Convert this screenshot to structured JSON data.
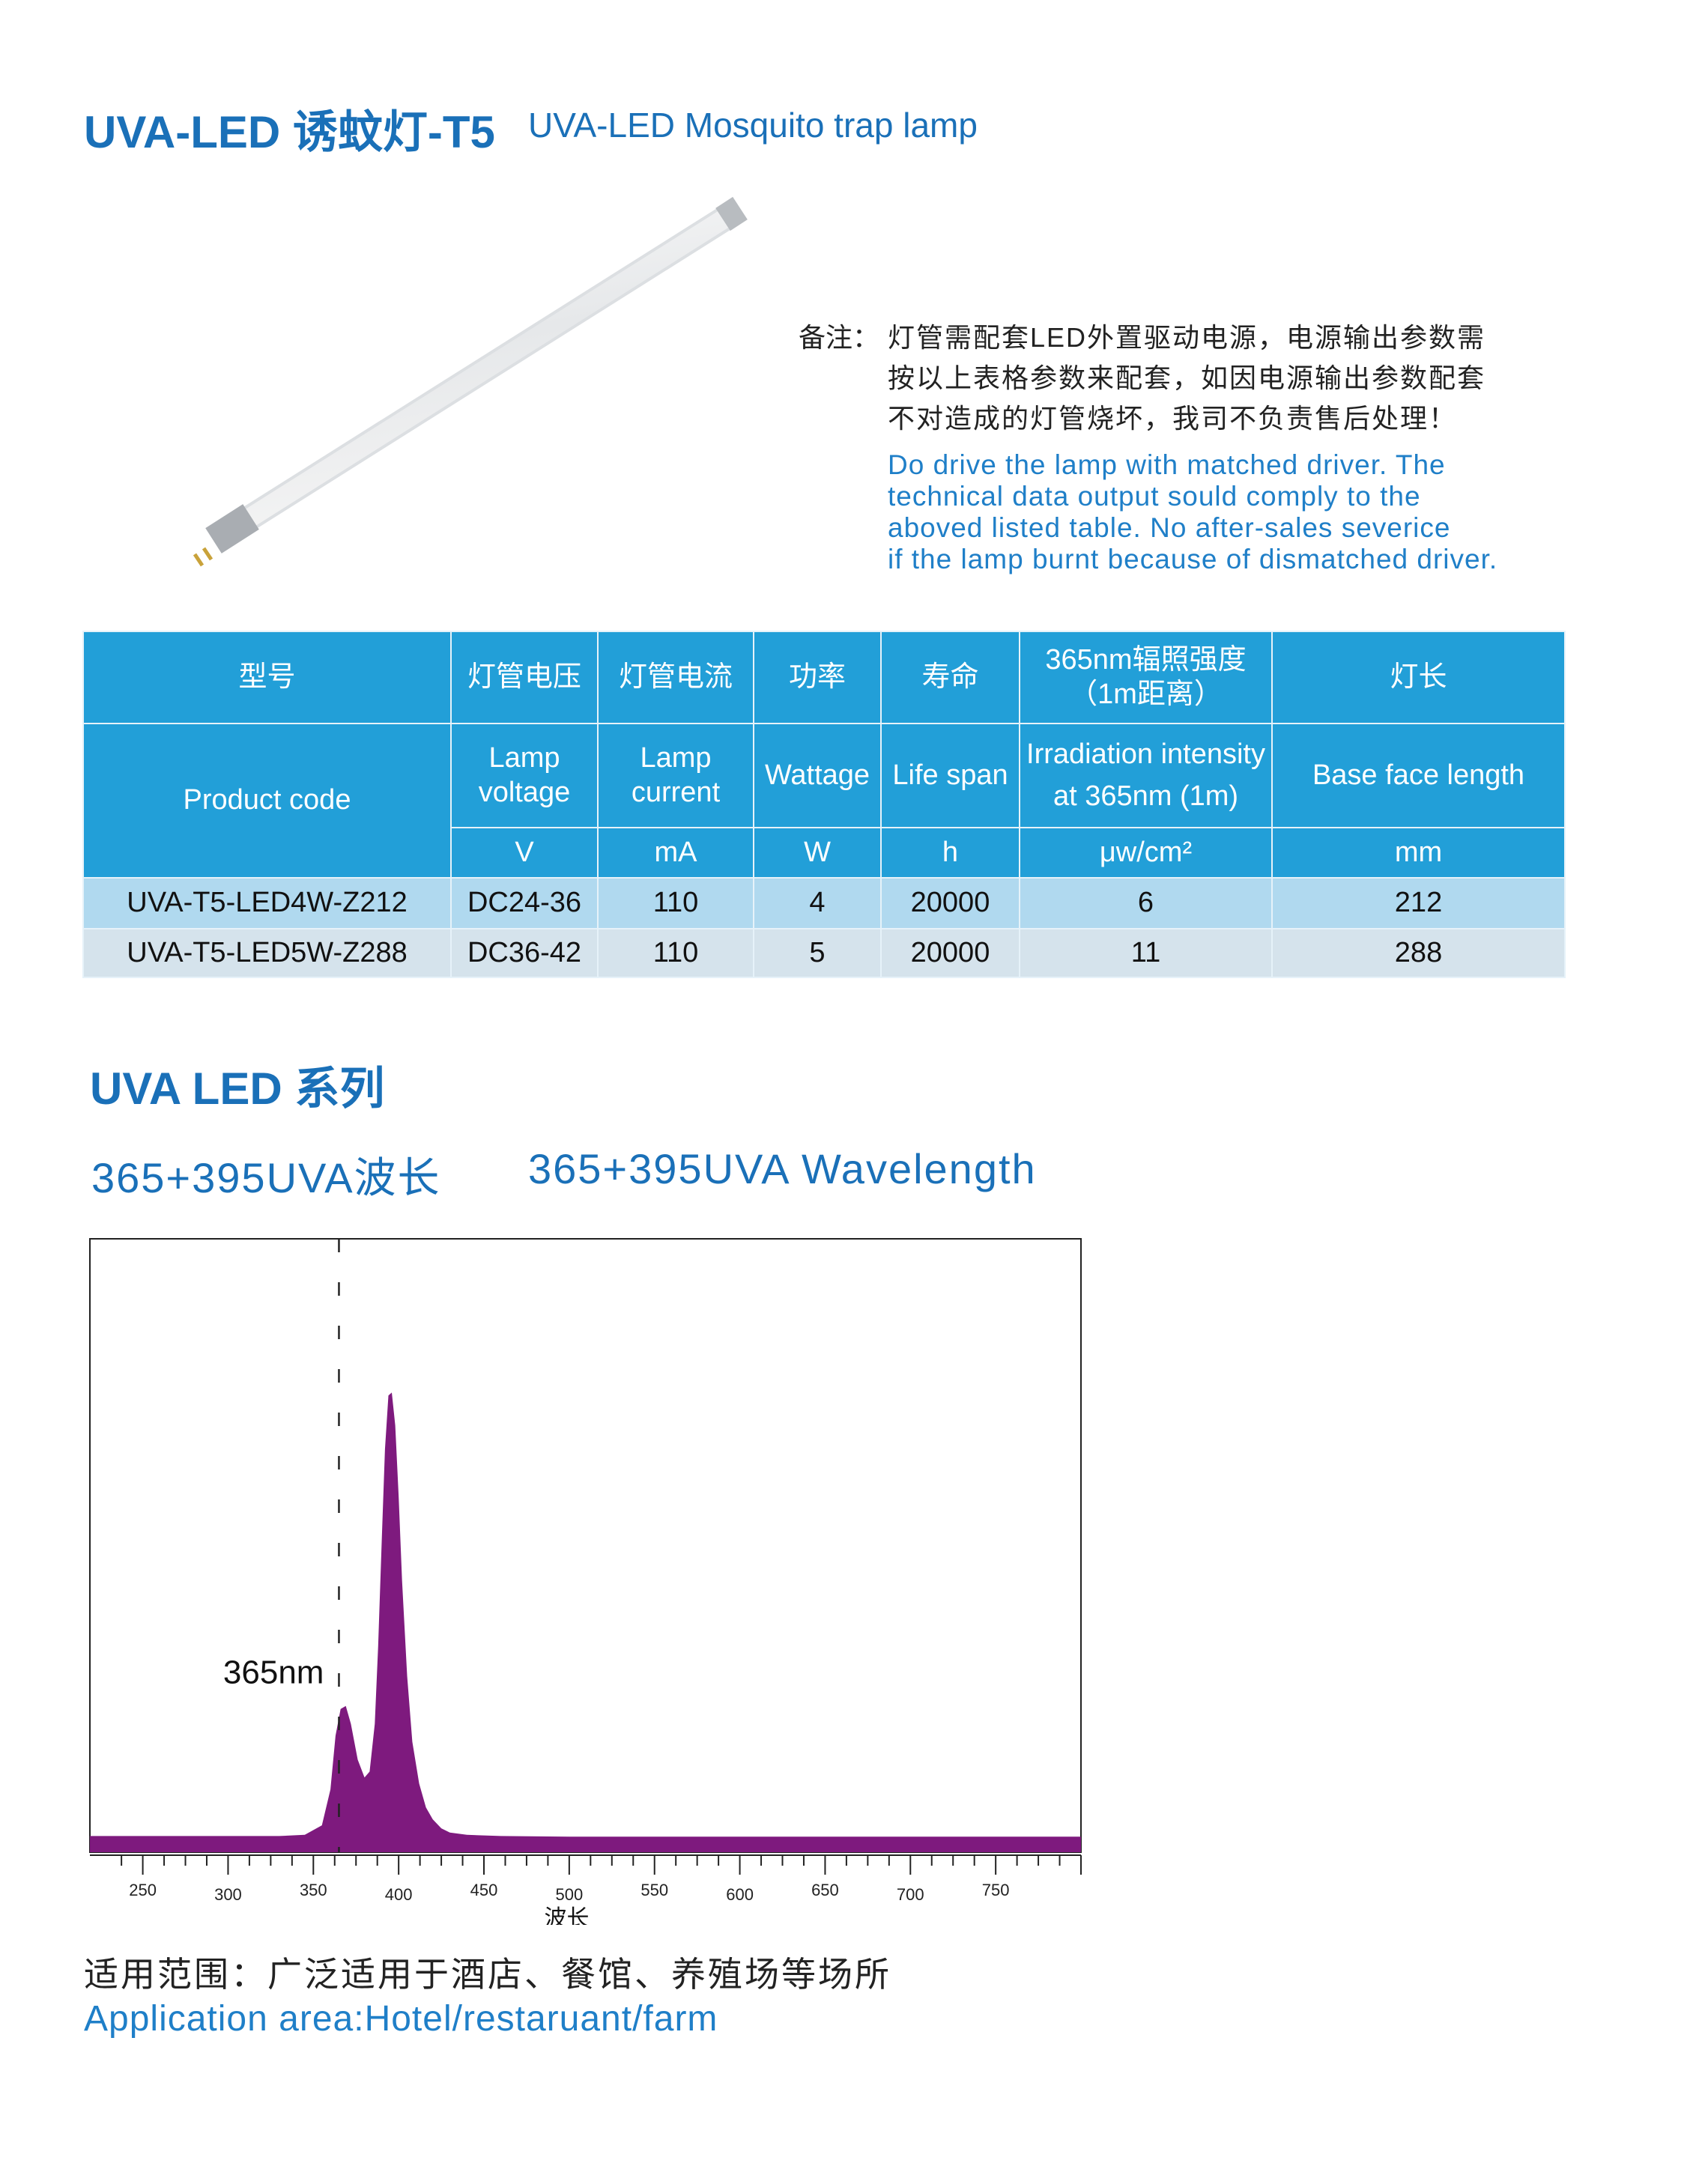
{
  "header": {
    "title": "UVA-LED 诱蚊灯-T5",
    "subtitle": "UVA-LED Mosquito trap lamp"
  },
  "note": {
    "label": "备注：",
    "cn_lines": [
      "灯管需配套LED外置驱动电源，电源输出参数需",
      "按以上表格参数来配套，如因电源输出参数配套",
      "不对造成的灯管烧坏，我司不负责售后处理！"
    ],
    "en_lines": [
      "Do drive the lamp with matched driver. The",
      "technical data output sould comply to the",
      "aboved listed table. No after-sales severice",
      "if the lamp burnt because of  dismatched driver."
    ]
  },
  "table": {
    "cn_headers": [
      "型号",
      "灯管电压",
      "灯管电流",
      "功率",
      "寿命",
      "365nm辐照强度（1m距离）",
      "灯长"
    ],
    "en_headers": [
      "Product  code",
      "Lamp voltage",
      "Lamp current",
      "Wattage",
      "Life span",
      "Irradiation intensity at 365nm (1m)",
      "Base face length"
    ],
    "units": [
      "V",
      "mA",
      "W",
      "h",
      "μw/cm²",
      "mm"
    ],
    "rows": [
      [
        "UVA-T5-LED4W-Z212",
        "DC24-36",
        "110",
        "4",
        "20000",
        "6",
        "212"
      ],
      [
        "UVA-T5-LED5W-Z288",
        "DC36-42",
        "110",
        "5",
        "20000",
        "11",
        "288"
      ]
    ]
  },
  "section": {
    "title": "UVA LED 系列",
    "wavelength_cn": "365+395UVA波长",
    "wavelength_en": "365+395UVA Wavelength"
  },
  "chart_data": {
    "type": "area",
    "xlabel": "波长",
    "ylabel": "",
    "xlim": [
      219,
      800
    ],
    "ylim": [
      0,
      1
    ],
    "xticks": [
      250,
      300,
      350,
      400,
      450,
      500,
      550,
      600,
      650,
      700,
      750
    ],
    "grid": false,
    "annotation": {
      "text": "365nm",
      "x": 365
    },
    "color": "#7e1a7e",
    "x": [
      219,
      330,
      345,
      355,
      360,
      363,
      366,
      369,
      372,
      376,
      380,
      383,
      386,
      388,
      390,
      392,
      394,
      396,
      398,
      400,
      402,
      405,
      408,
      412,
      416,
      420,
      425,
      430,
      440,
      460,
      500,
      600,
      800
    ],
    "y": [
      0.012,
      0.012,
      0.014,
      0.03,
      0.09,
      0.18,
      0.225,
      0.23,
      0.2,
      0.14,
      0.11,
      0.12,
      0.2,
      0.33,
      0.5,
      0.66,
      0.75,
      0.755,
      0.7,
      0.58,
      0.44,
      0.28,
      0.17,
      0.1,
      0.06,
      0.04,
      0.025,
      0.018,
      0.014,
      0.012,
      0.011,
      0.011,
      0.011
    ]
  },
  "application": {
    "cn": "适用范围：广泛适用于酒店、餐馆、养殖场等场所",
    "en": "Application area:Hotel/restaruant/farm"
  }
}
